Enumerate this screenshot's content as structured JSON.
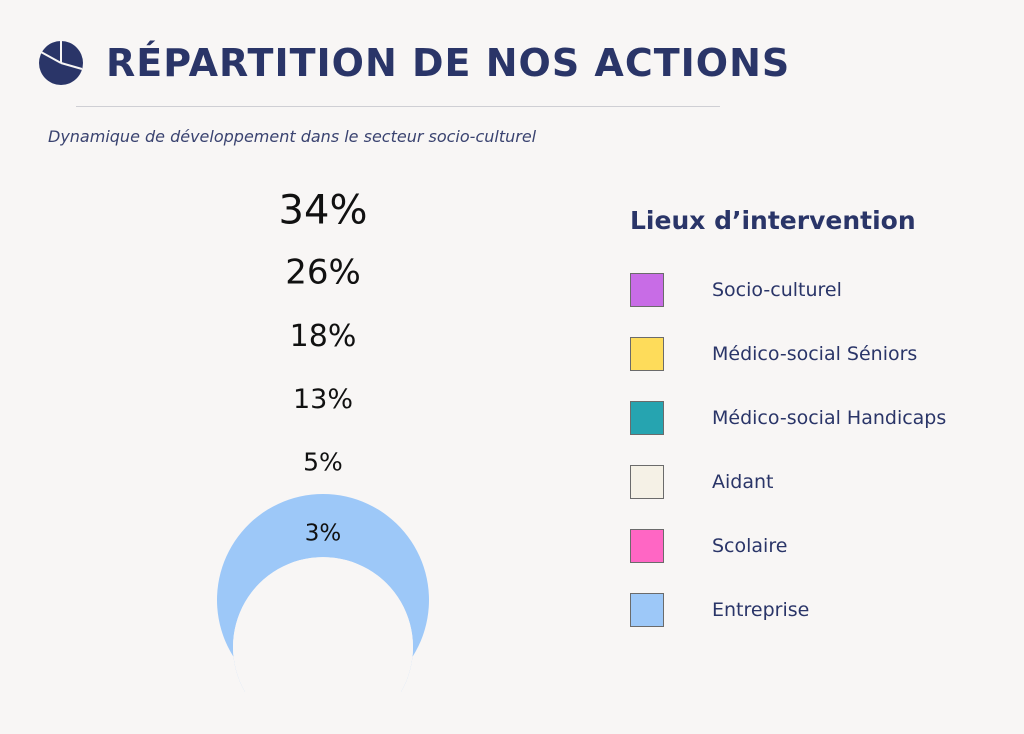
{
  "header": {
    "title": "RÉPARTITION DE NOS ACTIONS",
    "subtitle": "Dynamique de développement dans le secteur socio-culturel",
    "icon": "pie-chart-icon"
  },
  "chart_data": {
    "type": "pie",
    "style": "nested-arc",
    "legend_title": "Lieux d’intervention",
    "legend_position": "right",
    "series": [
      {
        "name": "Socio-culturel",
        "value": 34,
        "label": "34%",
        "color": "#c86ce6"
      },
      {
        "name": "Médico-social Séniors",
        "value": 26,
        "label": "26%",
        "color": "#fedc5a"
      },
      {
        "name": "Médico-social Handicaps",
        "value": 18,
        "label": "18%",
        "color": "#26a4b0"
      },
      {
        "name": "Aidant",
        "value": 13,
        "label": "13%",
        "color": "#f5f1e6"
      },
      {
        "name": "Scolaire",
        "value": 5,
        "label": "5%",
        "color": "#ff66c4"
      },
      {
        "name": "Entreprise",
        "value": 3,
        "label": "3%",
        "color": "#9dc8f8"
      }
    ]
  }
}
